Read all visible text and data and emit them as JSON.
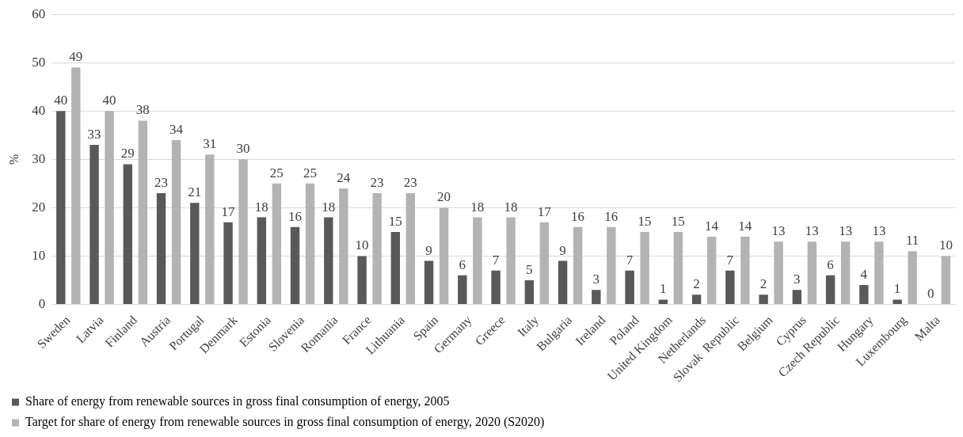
{
  "chart_data": {
    "type": "bar",
    "ylabel": "%",
    "categories": [
      "Sweden",
      "Latvia",
      "Finland",
      "Austria",
      "Portugal",
      "Denmark",
      "Estonia",
      "Slovenia",
      "Romania",
      "France",
      "Lithuania",
      "Spain",
      "Germany",
      "Greece",
      "Italy",
      "Bulgaria",
      "Ireland",
      "Poland",
      "United Kingdom",
      "Netherlands",
      "Slovak  Republic",
      "Belgium",
      "Cyprus",
      "Czech Republic",
      "Hungary",
      "Luxembourg",
      "Malta"
    ],
    "series": [
      {
        "name": "Share of energy from renewable sources in gross final consumption of energy, 2005",
        "color": "#595959",
        "values": [
          40,
          33,
          29,
          23,
          21,
          17,
          18,
          16,
          18,
          10,
          15,
          9,
          6,
          7,
          5,
          9,
          3,
          7,
          1,
          2,
          7,
          2,
          3,
          6,
          4,
          1,
          0
        ]
      },
      {
        "name": "Target for share of energy from renewable sources in gross final consumption of energy, 2020 (S2020)",
        "color": "#b3b3b3",
        "values": [
          49,
          40,
          38,
          34,
          31,
          30,
          25,
          25,
          24,
          23,
          23,
          20,
          18,
          18,
          17,
          16,
          16,
          15,
          15,
          14,
          14,
          13,
          13,
          13,
          13,
          11,
          10
        ]
      }
    ],
    "ylim": [
      0,
      60
    ],
    "yticks": [
      0,
      10,
      20,
      30,
      40,
      50,
      60
    ],
    "grid": "y",
    "legend": "bottom",
    "data_labels": true
  }
}
